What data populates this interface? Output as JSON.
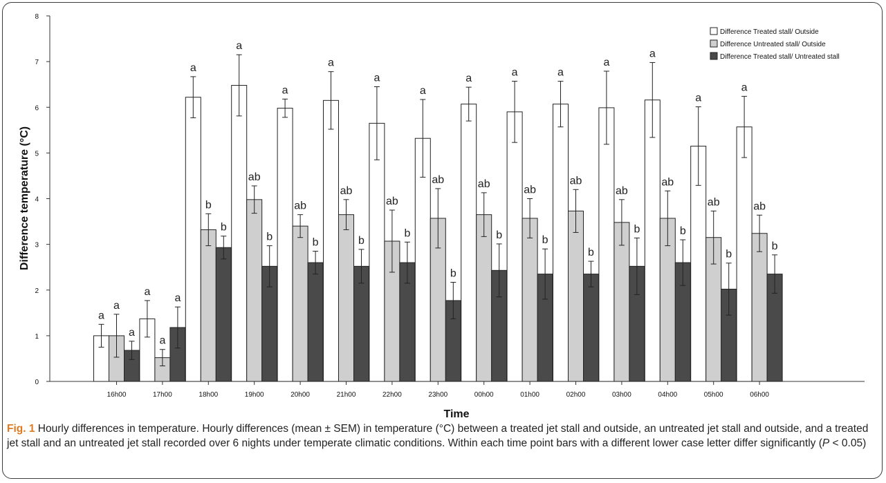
{
  "caption": {
    "fig_label": "Fig. 1",
    "title": "Hourly differences in temperature.",
    "body": "Hourly differences (mean ± SEM) in temperature (°C) between a treated jet stall and outside, an untreated jet stall and outside, and a treated jet stall and an untreated jet stall recorded over 6 nights under temperate climatic conditions. Within each time point bars with a different lower case letter differ significantly (",
    "p_italic": "P",
    "p_tail": " < 0.05)"
  },
  "colors": {
    "series": [
      "#ffffff",
      "#cfcfcf",
      "#4a4a4a"
    ],
    "stroke": "#222222"
  },
  "chart_data": {
    "type": "bar",
    "xlabel": "Time",
    "ylabel": "Difference temperature (°C)",
    "ylim": [
      0,
      8
    ],
    "yticks": [
      0,
      1,
      2,
      3,
      4,
      5,
      6,
      7,
      8
    ],
    "grid": false,
    "legend_position": "top-right",
    "categories": [
      "16h00",
      "17h00",
      "18h00",
      "19h00",
      "20h00",
      "21h00",
      "22h00",
      "23h00",
      "00h00",
      "01h00",
      "02h00",
      "03h00",
      "04h00",
      "05h00",
      "06h00"
    ],
    "series": [
      {
        "name": "Difference Treated stall/ Outside",
        "values": [
          1.0,
          1.37,
          6.22,
          6.48,
          5.98,
          6.15,
          5.65,
          5.32,
          6.07,
          5.9,
          6.07,
          5.99,
          6.16,
          5.15,
          5.57
        ],
        "errors": [
          0.25,
          0.4,
          0.45,
          0.67,
          0.2,
          0.63,
          0.8,
          0.85,
          0.37,
          0.67,
          0.5,
          0.8,
          0.82,
          0.86,
          0.67
        ],
        "letters": [
          "a",
          "a",
          "a",
          "a",
          "a",
          "a",
          "a",
          "a",
          "a",
          "a",
          "a",
          "a",
          "a",
          "a",
          "a"
        ]
      },
      {
        "name": "Difference Untreated stall/ Outside",
        "values": [
          1.0,
          0.52,
          3.32,
          3.98,
          3.4,
          3.65,
          3.07,
          3.57,
          3.65,
          3.57,
          3.73,
          3.48,
          3.57,
          3.15,
          3.24
        ],
        "errors": [
          0.47,
          0.18,
          0.35,
          0.3,
          0.25,
          0.33,
          0.68,
          0.65,
          0.48,
          0.43,
          0.47,
          0.5,
          0.6,
          0.58,
          0.4
        ],
        "letters": [
          "a",
          "a",
          "b",
          "ab",
          "ab",
          "ab",
          "ab",
          "ab",
          "ab",
          "ab",
          "ab",
          "ab",
          "ab",
          "ab",
          "ab"
        ]
      },
      {
        "name": "Difference Treated stall/ Untreated stall",
        "values": [
          0.68,
          1.18,
          2.93,
          2.52,
          2.6,
          2.52,
          2.6,
          1.77,
          2.43,
          2.35,
          2.35,
          2.52,
          2.6,
          2.02,
          2.35
        ],
        "errors": [
          0.2,
          0.45,
          0.25,
          0.45,
          0.25,
          0.37,
          0.45,
          0.4,
          0.58,
          0.55,
          0.28,
          0.62,
          0.5,
          0.57,
          0.42
        ],
        "letters": [
          "a",
          "a",
          "b",
          "b",
          "b",
          "b",
          "b",
          "b",
          "b",
          "b",
          "b",
          "b",
          "b",
          "b",
          "b"
        ]
      }
    ]
  }
}
